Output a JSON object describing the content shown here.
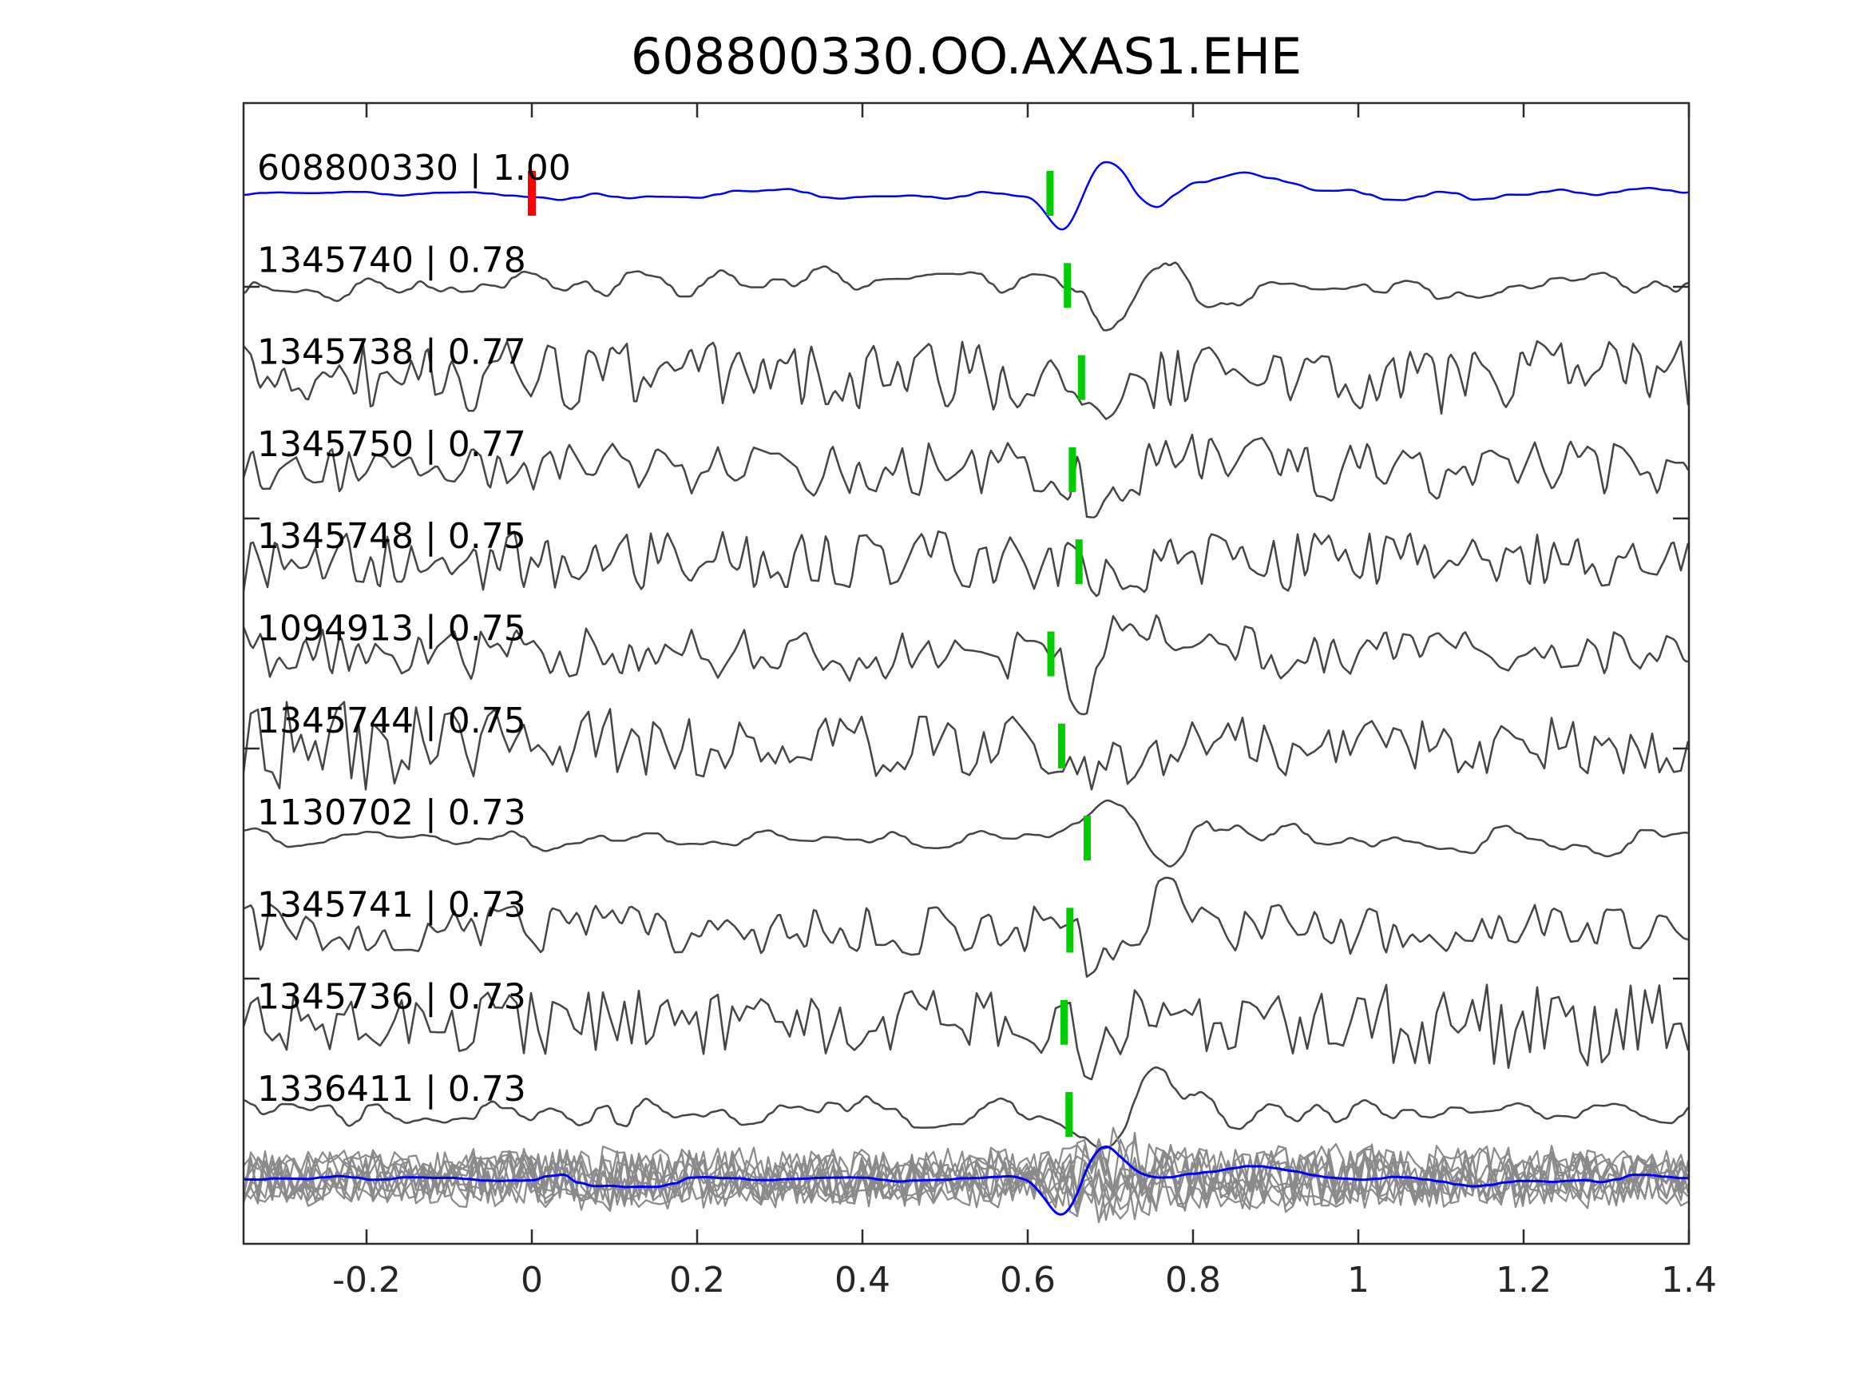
{
  "title": "608800330.OO.AXAS1.EHE",
  "colors": {
    "background": "#ffffff",
    "template_trace": "#0000ff",
    "detection_trace": "#454545",
    "overlay_gray_trace": "#8a8a8a",
    "pick_marker": "#00cc00",
    "template_start_marker": "#ff0000",
    "axis": "#2b2b2b",
    "text": "#000000"
  },
  "x_axis": {
    "range": [
      -0.348,
      1.4
    ],
    "tick_values": [
      -0.2,
      0,
      0.2,
      0.4,
      0.6,
      0.8,
      1,
      1.2,
      1.4
    ],
    "tick_labels": [
      "-0.2",
      "0",
      "0.2",
      "0.4",
      "0.6",
      "0.8",
      "1",
      "1.2",
      "1.4"
    ]
  },
  "traces": [
    {
      "id": "608800330",
      "correlation": "1.00",
      "label": "608800330 | 1.00",
      "kind": "template",
      "pick_time": 0.627,
      "has_template_start_marker": true,
      "template_start_time": 0,
      "waveform": {
        "seed": 101,
        "amp": 5,
        "step": 22,
        "smooth": true,
        "env": [
          [
            -0.35,
            0.9
          ],
          [
            -0.02,
            0.9
          ],
          [
            0.03,
            2.5
          ],
          [
            0.2,
            2.6
          ],
          [
            0.3,
            1.8
          ],
          [
            0.55,
            1.8
          ],
          [
            0.62,
            2.2
          ],
          [
            0.8,
            3.1
          ],
          [
            1.4,
            2.9
          ]
        ],
        "gauss": [
          [
            0.645,
            0.02,
            -55
          ],
          [
            0.69,
            0.027,
            42
          ],
          [
            0.752,
            0.022,
            -15
          ],
          [
            0.862,
            0.038,
            26
          ]
        ]
      }
    },
    {
      "id": "1345740",
      "correlation": "0.78",
      "label": "1345740 | 0.78",
      "kind": "detection",
      "pick_time": 0.648,
      "waveform": {
        "seed": 202,
        "amp": 30,
        "step": 13,
        "smooth": true,
        "env": [
          [
            -0.35,
            1.0
          ],
          [
            0.55,
            0.95
          ],
          [
            0.72,
            1.25
          ],
          [
            0.95,
            0.85
          ],
          [
            1.4,
            0.8
          ]
        ],
        "gauss": [
          [
            0.695,
            0.025,
            -62
          ],
          [
            0.755,
            0.03,
            46
          ],
          [
            0.81,
            0.025,
            -30
          ]
        ]
      }
    },
    {
      "id": "1345738",
      "correlation": "0.77",
      "label": "1345738 | 0.77",
      "kind": "detection",
      "pick_time": 0.665,
      "waveform": {
        "seed": 303,
        "amp": 46,
        "step": 10,
        "smooth": false,
        "env": [
          [
            -0.35,
            1
          ],
          [
            1.4,
            1
          ]
        ],
        "gauss": [
          [
            0.7,
            0.025,
            -30
          ]
        ]
      }
    },
    {
      "id": "1345750",
      "correlation": "0.77",
      "label": "1345750 | 0.77",
      "kind": "detection",
      "pick_time": 0.654,
      "waveform": {
        "seed": 404,
        "amp": 36,
        "step": 11,
        "smooth": false,
        "env": [
          [
            -0.35,
            0.95
          ],
          [
            0.6,
            0.95
          ],
          [
            0.75,
            1.2
          ],
          [
            1.4,
            1.0
          ]
        ],
        "gauss": [
          [
            0.7,
            0.025,
            -42
          ],
          [
            0.765,
            0.03,
            38
          ]
        ]
      }
    },
    {
      "id": "1345748",
      "correlation": "0.75",
      "label": "1345748 | 0.75",
      "kind": "detection",
      "pick_time": 0.662,
      "waveform": {
        "seed": 505,
        "amp": 40,
        "step": 10,
        "smooth": false,
        "env": [
          [
            -0.35,
            1
          ],
          [
            1.4,
            1
          ]
        ],
        "gauss": [
          [
            0.71,
            0.025,
            -40
          ]
        ]
      }
    },
    {
      "id": "1094913",
      "correlation": "0.75",
      "label": "1094913 | 0.75",
      "kind": "detection",
      "pick_time": 0.628,
      "waveform": {
        "seed": 606,
        "amp": 34,
        "step": 11,
        "smooth": false,
        "env": [
          [
            -0.35,
            1
          ],
          [
            0.6,
            1
          ],
          [
            0.75,
            1.15
          ],
          [
            1.0,
            0.9
          ],
          [
            1.4,
            0.85
          ]
        ],
        "gauss": [
          [
            0.665,
            0.022,
            -50
          ],
          [
            0.73,
            0.03,
            42
          ]
        ]
      }
    },
    {
      "id": "1345744",
      "correlation": "0.75",
      "label": "1345744 | 0.75",
      "kind": "detection",
      "pick_time": 0.641,
      "waveform": {
        "seed": 707,
        "amp": 40,
        "step": 9,
        "smooth": false,
        "env": [
          [
            -0.35,
            1.45
          ],
          [
            0.1,
            1.3
          ],
          [
            0.3,
            0.95
          ],
          [
            1.4,
            0.9
          ]
        ],
        "gauss": [
          [
            0.69,
            0.022,
            -38
          ]
        ]
      }
    },
    {
      "id": "1130702",
      "correlation": "0.73",
      "label": "1130702 | 0.73",
      "kind": "detection",
      "pick_time": 0.672,
      "waveform": {
        "seed": 808,
        "amp": 18,
        "step": 14,
        "smooth": true,
        "env": [
          [
            -0.35,
            1
          ],
          [
            0.6,
            1
          ],
          [
            0.78,
            1.6
          ],
          [
            1.4,
            1.35
          ]
        ],
        "gauss": [
          [
            0.705,
            0.028,
            60
          ],
          [
            0.765,
            0.03,
            -46
          ],
          [
            0.835,
            0.03,
            28
          ]
        ]
      }
    },
    {
      "id": "1345741",
      "correlation": "0.73",
      "label": "1345741 | 0.73",
      "kind": "detection",
      "pick_time": 0.651,
      "waveform": {
        "seed": 909,
        "amp": 34,
        "step": 11,
        "smooth": false,
        "env": [
          [
            -0.35,
            1
          ],
          [
            1.4,
            0.95
          ]
        ],
        "gauss": [
          [
            0.7,
            0.025,
            -55
          ],
          [
            0.765,
            0.03,
            40
          ]
        ]
      }
    },
    {
      "id": "1345736",
      "correlation": "0.73",
      "label": "1345736 | 0.73",
      "kind": "detection",
      "pick_time": 0.644,
      "waveform": {
        "seed": 1010,
        "amp": 40,
        "step": 9,
        "smooth": false,
        "env": [
          [
            -0.35,
            1
          ],
          [
            0.95,
            1
          ],
          [
            1.1,
            1.45
          ],
          [
            1.3,
            1.4
          ],
          [
            1.4,
            1.1
          ]
        ],
        "gauss": [
          [
            0.69,
            0.022,
            -45
          ],
          [
            0.745,
            0.025,
            36
          ]
        ]
      }
    },
    {
      "id": "1336411",
      "correlation": "0.73",
      "label": "1336411 | 0.73",
      "kind": "detection",
      "pick_time": 0.65,
      "waveform": {
        "seed": 1111,
        "amp": 28,
        "step": 12,
        "smooth": true,
        "env": [
          [
            -0.35,
            1
          ],
          [
            0.8,
            1
          ],
          [
            1.05,
            0.75
          ],
          [
            1.4,
            0.75
          ]
        ],
        "gauss": [
          [
            0.695,
            0.025,
            -50
          ],
          [
            0.758,
            0.03,
            46
          ]
        ]
      }
    }
  ],
  "overlay_stack": {
    "description": "all detection waveforms overlaid in gray with template in blue",
    "gray_trace_count": 10,
    "gray_waveform": {
      "amp": 30,
      "step": 9,
      "smooth": false,
      "seed_base": 40,
      "env": [
        [
          -0.35,
          1
        ],
        [
          0,
          1
        ],
        [
          0.05,
          1.25
        ],
        [
          0.2,
          1.2
        ],
        [
          0.35,
          1
        ],
        [
          0.62,
          1.05
        ],
        [
          0.72,
          1.35
        ],
        [
          0.95,
          1.25
        ],
        [
          1.4,
          1.05
        ]
      ],
      "gauss": [
        [
          0.7,
          0.03,
          -25
        ]
      ]
    },
    "blue_waveform": {
      "seed": 77,
      "amp": 5,
      "step": 20,
      "smooth": true,
      "env": [
        [
          -0.35,
          0.8
        ],
        [
          -0.02,
          0.8
        ],
        [
          0.04,
          3.6
        ],
        [
          0.14,
          3.4
        ],
        [
          0.22,
          1.6
        ],
        [
          0.55,
          1.5
        ],
        [
          0.8,
          2.6
        ],
        [
          1.4,
          2.3
        ]
      ],
      "gauss": [
        [
          0.645,
          0.021,
          -52
        ],
        [
          0.688,
          0.027,
          40
        ],
        [
          0.86,
          0.04,
          16
        ]
      ]
    }
  },
  "chart_data": {
    "type": "line",
    "title": "608800330.OO.AXAS1.EHE",
    "xlabel": "",
    "ylabel": "",
    "xlim": [
      -0.348,
      1.4
    ],
    "x_ticks": [
      -0.2,
      0,
      0.2,
      0.4,
      0.6,
      0.8,
      1,
      1.2,
      1.4
    ],
    "grid": false,
    "legend": "none",
    "series": [
      {
        "name": "608800330 | 1.00",
        "id": "608800330",
        "correlation": 1.0,
        "pick_time": 0.627,
        "color": "#0000ff",
        "row": 0,
        "note": "template trace; red marker at t=0"
      },
      {
        "name": "1345740 | 0.78",
        "id": "1345740",
        "correlation": 0.78,
        "pick_time": 0.648,
        "color": "#454545",
        "row": 1
      },
      {
        "name": "1345738 | 0.77",
        "id": "1345738",
        "correlation": 0.77,
        "pick_time": 0.665,
        "color": "#454545",
        "row": 2
      },
      {
        "name": "1345750 | 0.77",
        "id": "1345750",
        "correlation": 0.77,
        "pick_time": 0.654,
        "color": "#454545",
        "row": 3
      },
      {
        "name": "1345748 | 0.75",
        "id": "1345748",
        "correlation": 0.75,
        "pick_time": 0.662,
        "color": "#454545",
        "row": 4
      },
      {
        "name": "1094913 | 0.75",
        "id": "1094913",
        "correlation": 0.75,
        "pick_time": 0.628,
        "color": "#454545",
        "row": 5
      },
      {
        "name": "1345744 | 0.75",
        "id": "1345744",
        "correlation": 0.75,
        "pick_time": 0.641,
        "color": "#454545",
        "row": 6
      },
      {
        "name": "1130702 | 0.73",
        "id": "1130702",
        "correlation": 0.73,
        "pick_time": 0.672,
        "color": "#454545",
        "row": 7
      },
      {
        "name": "1345741 | 0.73",
        "id": "1345741",
        "correlation": 0.73,
        "pick_time": 0.651,
        "color": "#454545",
        "row": 8
      },
      {
        "name": "1345736 | 0.73",
        "id": "1345736",
        "correlation": 0.73,
        "pick_time": 0.644,
        "color": "#454545",
        "row": 9
      },
      {
        "name": "1336411 | 0.73",
        "id": "1336411",
        "correlation": 0.73,
        "pick_time": 0.65,
        "color": "#454545",
        "row": 10
      },
      {
        "name": "overlay stack",
        "id": "overlay",
        "color": "#8a8a8a",
        "row": 11,
        "note": "all detections overlaid with blue template"
      }
    ]
  }
}
